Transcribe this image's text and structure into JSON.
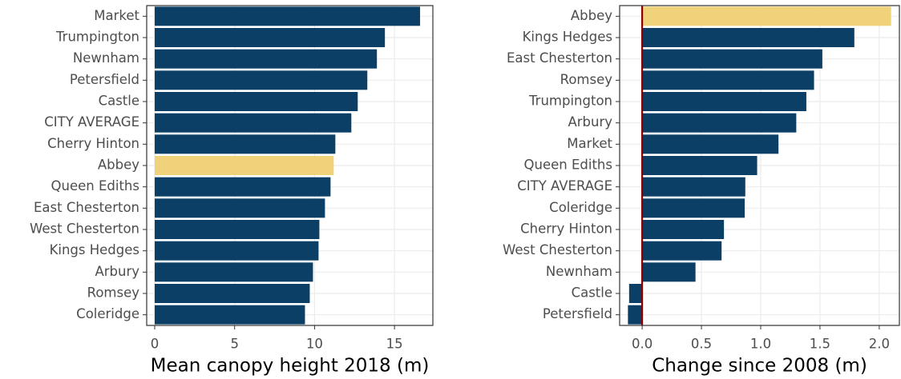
{
  "chart_data": [
    {
      "type": "barh",
      "xlabel": "Mean canopy height 2018 (m)",
      "categories": [
        "Market",
        "Trumpington",
        "Newnham",
        "Petersfield",
        "Castle",
        "CITY AVERAGE",
        "Cherry Hinton",
        "Abbey",
        "Queen Ediths",
        "East Chesterton",
        "West Chesterton",
        "Kings Hedges",
        "Arbury",
        "Romsey",
        "Coleridge"
      ],
      "values": [
        16.6,
        14.4,
        13.9,
        13.3,
        12.7,
        12.3,
        11.3,
        11.2,
        11.0,
        10.65,
        10.3,
        10.25,
        9.9,
        9.7,
        9.4
      ],
      "colors": [
        "#0b3f66",
        "#0b3f66",
        "#0b3f66",
        "#0b3f66",
        "#0b3f66",
        "#0b3f66",
        "#0b3f66",
        "#f0d27a",
        "#0b3f66",
        "#0b3f66",
        "#0b3f66",
        "#0b3f66",
        "#0b3f66",
        "#0b3f66",
        "#0b3f66"
      ],
      "xlim": [
        -0.5,
        17.4
      ],
      "xticks": [
        0,
        5,
        10,
        15
      ],
      "grid": true
    },
    {
      "type": "barh",
      "xlabel": "Change since 2008 (m)",
      "categories": [
        "Abbey",
        "Kings Hedges",
        "East Chesterton",
        "Romsey",
        "Trumpington",
        "Arbury",
        "Market",
        "Queen Ediths",
        "CITY AVERAGE",
        "Coleridge",
        "Cherry Hinton",
        "West Chesterton",
        "Newnham",
        "Castle",
        "Petersfield"
      ],
      "values": [
        2.1,
        1.79,
        1.52,
        1.45,
        1.385,
        1.3,
        1.15,
        0.97,
        0.87,
        0.865,
        0.69,
        0.67,
        0.45,
        -0.11,
        -0.12
      ],
      "colors": [
        "#f0d27a",
        "#0b3f66",
        "#0b3f66",
        "#0b3f66",
        "#0b3f66",
        "#0b3f66",
        "#0b3f66",
        "#0b3f66",
        "#0b3f66",
        "#0b3f66",
        "#0b3f66",
        "#0b3f66",
        "#0b3f66",
        "#0b3f66",
        "#0b3f66"
      ],
      "xlim": [
        -0.19,
        2.17
      ],
      "xticks": [
        {
          "value": 0,
          "label": "0.0"
        },
        0.5,
        {
          "value": 1,
          "label": "1.0"
        },
        1.5,
        {
          "value": 2,
          "label": "2.0"
        }
      ],
      "zero_line_color": "#8b0000",
      "grid": true
    }
  ]
}
